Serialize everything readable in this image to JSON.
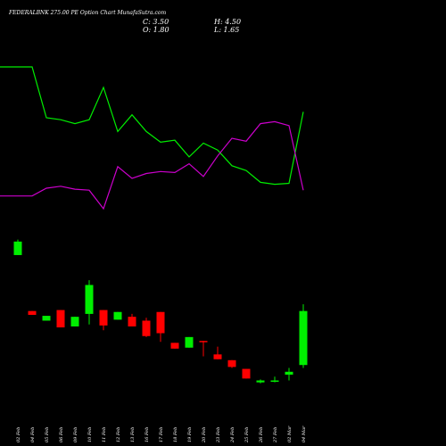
{
  "chart_data": {
    "type": "candlestick",
    "title": "FEDERALBNK 275.00  PE Option  Chart MunafaSutra.com",
    "ohlc_text": {
      "open": "C: 3.50",
      "high": "H: 4.50",
      "close": "O: 1.80",
      "low": "L: 1.65"
    },
    "colors": {
      "background": "#000000",
      "up": "#00ee00",
      "down": "#ff0000",
      "text": "#ffffff",
      "line_green": "#00ee00",
      "line_magenta": "#cc00cc"
    },
    "categories": [
      "02 Feb",
      "04 Feb",
      "05 Feb",
      "06 Feb",
      "09 Feb",
      "10 Feb",
      "11 Feb",
      "12 Feb",
      "13 Feb",
      "16 Feb",
      "17 Feb",
      "18 Feb",
      "19 Feb",
      "20 Feb",
      "23 Feb",
      "24 Feb",
      "25 Feb",
      "26 Feb",
      "27 Feb",
      "02 Mar",
      "04 Mar"
    ],
    "candles": [
      {
        "open": 15.6,
        "high": 17.2,
        "low": 15.6,
        "close": 17.0
      },
      {
        "open": 9.8,
        "high": 9.8,
        "low": 9.4,
        "close": 9.4
      },
      {
        "open": 8.8,
        "high": 9.3,
        "low": 8.8,
        "close": 9.3
      },
      {
        "open": 9.9,
        "high": 9.9,
        "low": 8.1,
        "close": 8.1
      },
      {
        "open": 8.2,
        "high": 9.2,
        "low": 8.2,
        "close": 9.2
      },
      {
        "open": 9.5,
        "high": 13.0,
        "low": 8.4,
        "close": 12.5
      },
      {
        "open": 9.9,
        "high": 9.9,
        "low": 7.8,
        "close": 8.3
      },
      {
        "open": 8.9,
        "high": 9.7,
        "low": 8.9,
        "close": 9.7
      },
      {
        "open": 9.2,
        "high": 9.5,
        "low": 8.2,
        "close": 8.2
      },
      {
        "open": 8.8,
        "high": 9.1,
        "low": 7.1,
        "close": 7.2
      },
      {
        "open": 9.7,
        "high": 9.7,
        "low": 6.6,
        "close": 7.5
      },
      {
        "open": 6.5,
        "high": 6.5,
        "low": 5.9,
        "close": 5.9
      },
      {
        "open": 6.0,
        "high": 7.1,
        "low": 6.0,
        "close": 7.1
      },
      {
        "open": 6.7,
        "high": 6.7,
        "low": 5.1,
        "close": 6.6
      },
      {
        "open": 5.3,
        "high": 6.1,
        "low": 4.8,
        "close": 4.8
      },
      {
        "open": 4.7,
        "high": 4.7,
        "low": 3.9,
        "close": 4.0
      },
      {
        "open": 3.8,
        "high": 3.8,
        "low": 2.8,
        "close": 2.8
      },
      {
        "open": 2.4,
        "high": 2.7,
        "low": 2.3,
        "close": 2.6
      },
      {
        "open": 2.5,
        "high": 3.0,
        "low": 2.4,
        "close": 2.6
      },
      {
        "open": 3.2,
        "high": 3.9,
        "low": 2.6,
        "close": 3.5
      },
      {
        "open": 4.2,
        "high": 10.5,
        "low": 3.9,
        "close": 9.8
      }
    ],
    "line_series": [
      {
        "color": "green",
        "values": [
          97.5,
          97.5,
          92.3,
          92.1,
          91.7,
          92.1,
          95.4,
          90.9,
          92.6,
          90.9,
          89.8,
          90.0,
          88.3,
          89.7,
          89.0,
          87.4,
          86.9,
          85.7,
          85.5,
          85.6,
          92.9
        ]
      },
      {
        "color": "magenta",
        "values": [
          84.3,
          84.3,
          85.1,
          85.3,
          85.0,
          84.9,
          83.0,
          87.3,
          86.1,
          86.6,
          86.8,
          86.7,
          87.6,
          86.3,
          88.4,
          90.2,
          89.9,
          91.7,
          91.9,
          91.5,
          84.9
        ]
      }
    ]
  }
}
